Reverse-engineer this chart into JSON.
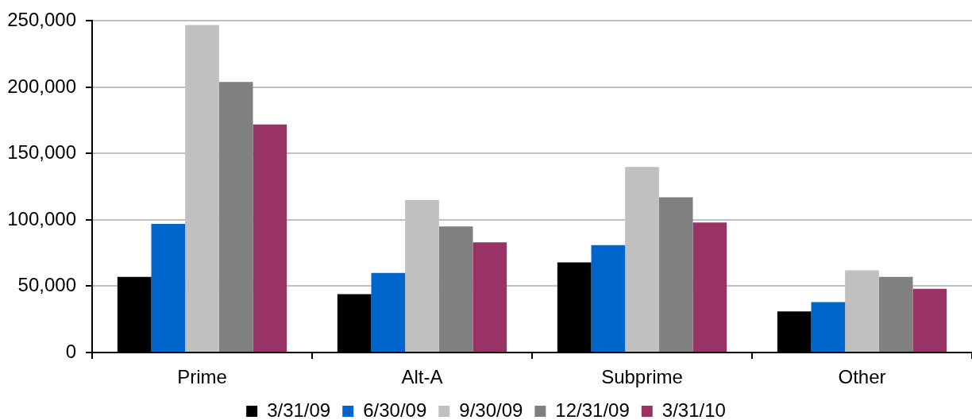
{
  "chart_data": {
    "type": "bar",
    "categories": [
      "Prime",
      "Alt-A",
      "Subprime",
      "Other"
    ],
    "series": [
      {
        "name": "3/31/09",
        "color": "#000000",
        "values": [
          57000,
          44000,
          68000,
          31000
        ]
      },
      {
        "name": "6/30/09",
        "color": "#0066cc",
        "values": [
          97000,
          60000,
          81000,
          38000
        ]
      },
      {
        "name": "9/30/09",
        "color": "#c0c0c0",
        "values": [
          247000,
          115000,
          140000,
          62000
        ]
      },
      {
        "name": "12/31/09",
        "color": "#808080",
        "values": [
          204000,
          95000,
          117000,
          57000
        ]
      },
      {
        "name": "3/31/10",
        "color": "#993366",
        "values": [
          172000,
          83000,
          98000,
          48000
        ]
      }
    ],
    "ylim": [
      0,
      250000
    ],
    "yticks": [
      0,
      {
        "value": 50000,
        "label": "50,000"
      },
      {
        "value": 100000,
        "label": "100,000"
      },
      {
        "value": 150000,
        "label": "150,000"
      },
      {
        "value": 200000,
        "label": "200,000"
      },
      {
        "value": 250000,
        "label": "250,000"
      }
    ],
    "grid": "y",
    "legend": "bottom"
  }
}
